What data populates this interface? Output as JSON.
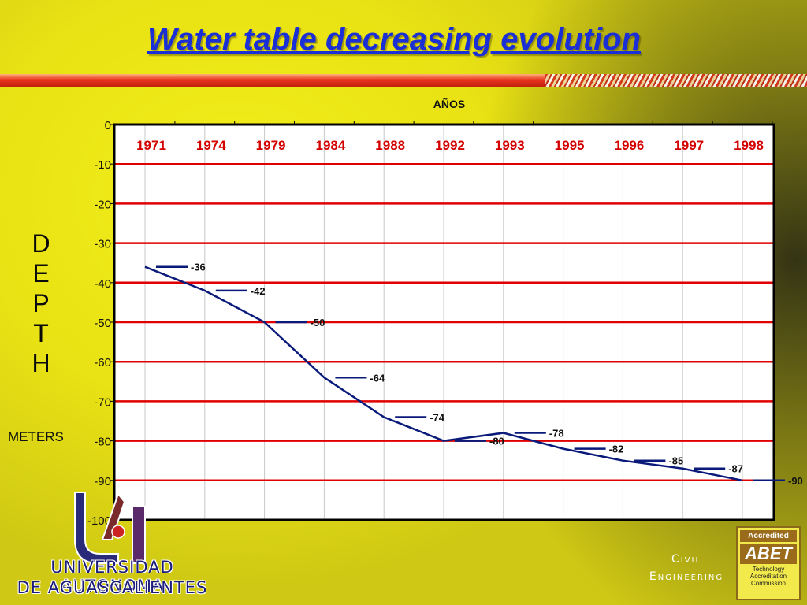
{
  "slide": {
    "title": "Water table decreasing evolution",
    "vertical_label": [
      "D",
      "E",
      "P",
      "T",
      "H"
    ],
    "units_label": "METERS",
    "university_line1": "UNIVERSIDAD AUTONOMA",
    "university_line2": "DE AGUASCALIENTES",
    "department_line1": "Civil",
    "department_line2": "Engineering",
    "badge": {
      "accredited": "Accredited",
      "mark": "ABET",
      "line1": "Technology",
      "line2": "Accreditation",
      "line3": "Commission"
    }
  },
  "colors": {
    "title": "#1a2fd6",
    "series": "#0a1a7a",
    "gridline": "#e00000",
    "year_labels": "#d40000",
    "plot_background": "#ffffff"
  },
  "chart_data": {
    "type": "line",
    "xlabel": "AÑOS",
    "ylabel": "",
    "ylim": [
      -100,
      0
    ],
    "yticks": [
      "0",
      "-10",
      "-20",
      "-30",
      "-40",
      "-50",
      "-60",
      "-70",
      "-80",
      "-90",
      "-100"
    ],
    "grid": true,
    "categories": [
      "1971",
      "1974",
      "1979",
      "1984",
      "1988",
      "1992",
      "1993",
      "1995",
      "1996",
      "1997",
      "1998"
    ],
    "series": [
      {
        "values": [
          -36,
          -42,
          -50,
          -64,
          -74,
          -80,
          -78,
          -82,
          -85,
          -87,
          -90
        ]
      }
    ],
    "data_labels": [
      "-36",
      "-42",
      "-50",
      "-64",
      "-74",
      "-80",
      "-78",
      "-82",
      "-85",
      "-87",
      "-90"
    ]
  }
}
